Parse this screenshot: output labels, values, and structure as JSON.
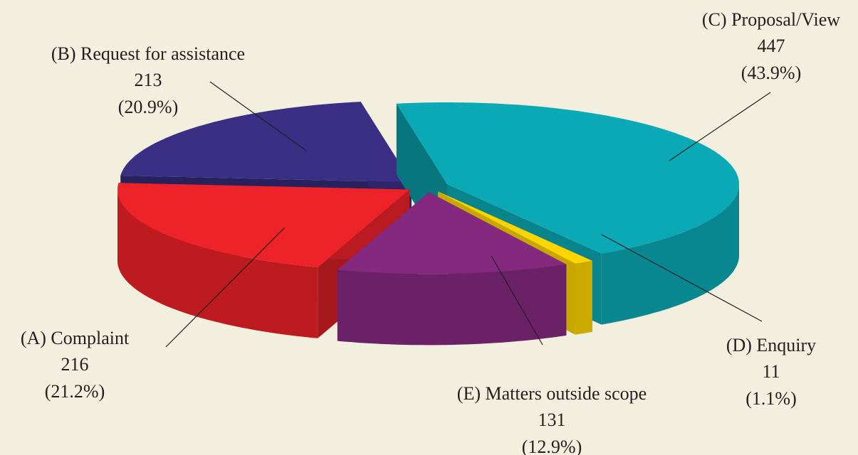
{
  "chart_data": {
    "type": "pie",
    "categories": [
      "(A) Complaint",
      "(B) Request for assistance",
      "(C) Proposal/View",
      "(D) Enquiry",
      "(E) Matters outside scope"
    ],
    "values": [
      216,
      213,
      447,
      11,
      131
    ],
    "percent_labels": [
      "(21.2%)",
      "(20.9%)",
      "(43.9%)",
      "(1.1%)",
      "(12.9%)"
    ],
    "colors": [
      "#ee2229",
      "#3a2f85",
      "#0aa9b5",
      "#ffd500",
      "#84297f"
    ]
  }
}
